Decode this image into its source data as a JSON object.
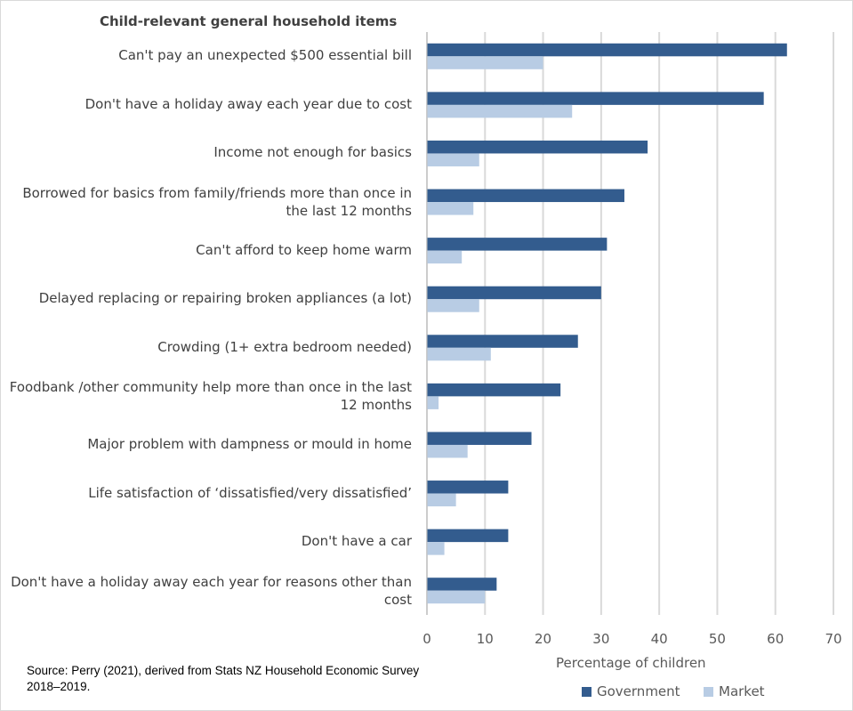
{
  "chart_data": {
    "type": "bar",
    "orientation": "horizontal",
    "title": "Child-relevant general household items",
    "xlabel": "Percentage of children",
    "xlim": [
      0,
      70
    ],
    "xticks": [
      0,
      10,
      20,
      30,
      40,
      50,
      60,
      70
    ],
    "grid": true,
    "legend": "bottom",
    "categories": [
      "Can't pay an unexpected $500 essential bill",
      "Don't have a holiday away each year due to cost",
      "Income not enough for basics",
      "Borrowed for basics from family/friends more than once in the last 12 months",
      "Can't  afford to keep home warm",
      "Delayed replacing or repairing broken appliances (a lot)",
      "Crowding (1+ extra bedroom needed)",
      "Foodbank /other community help more than once in the last 12 months",
      "Major problem with dampness or mould in home",
      "Life satisfaction of ‘dissatisfied/very dissatisfied’",
      "Don't have a car",
      "Don't have a holiday away each year for reasons other than cost"
    ],
    "series": [
      {
        "name": "Government",
        "color": "#335c8e",
        "values": [
          62,
          58,
          38,
          34,
          31,
          30,
          26,
          23,
          18,
          14,
          14,
          12
        ]
      },
      {
        "name": "Market",
        "color": "#b8cce4",
        "values": [
          20,
          25,
          9,
          8,
          6,
          9,
          11,
          2,
          7,
          5,
          3,
          10
        ]
      }
    ]
  },
  "source": "Source: Perry (2021), derived from Stats NZ Household Economic Survey 2018–2019."
}
